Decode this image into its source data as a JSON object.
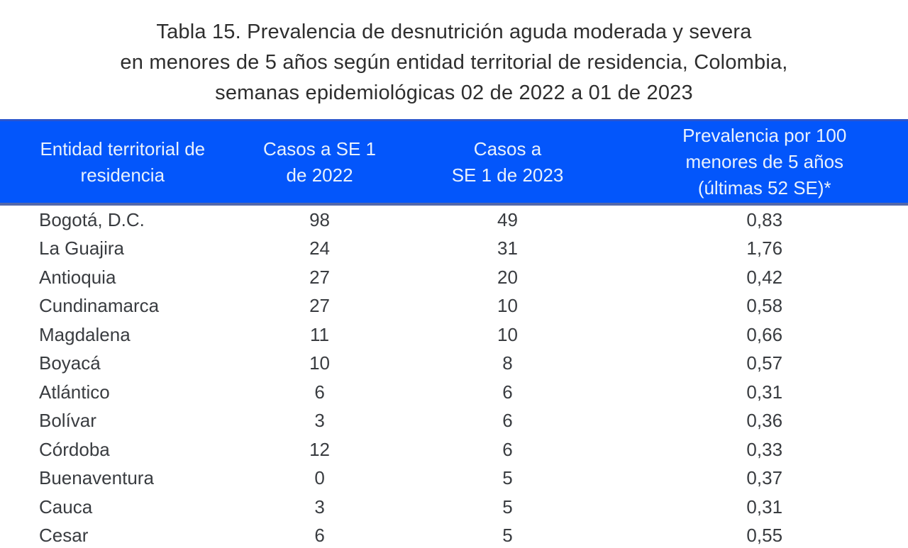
{
  "title": {
    "line1": "Tabla 15. Prevalencia de desnutrición aguda moderada y severa",
    "line2": "en menores de 5 años según entidad territorial de residencia, Colombia,",
    "line3": "semanas epidemiológicas 02 de 2022 a 01 de 2023"
  },
  "table": {
    "headers": {
      "col1": {
        "line1": "Entidad territorial de",
        "line2": "residencia"
      },
      "col2": {
        "line1": "Casos a SE 1",
        "line2": "de 2022"
      },
      "col3": {
        "line1": "Casos a",
        "line2": "SE 1 de 2023"
      },
      "col4": {
        "line1": "Prevalencia por 100",
        "line2": "menores de 5 años",
        "line3": "(últimas 52 SE)*"
      }
    },
    "rows": [
      {
        "entity": "Bogotá, D.C.",
        "cases_2022": "98",
        "cases_2023": "49",
        "prevalence": "0,83"
      },
      {
        "entity": "La Guajira",
        "cases_2022": "24",
        "cases_2023": "31",
        "prevalence": "1,76"
      },
      {
        "entity": "Antioquia",
        "cases_2022": "27",
        "cases_2023": "20",
        "prevalence": "0,42"
      },
      {
        "entity": "Cundinamarca",
        "cases_2022": "27",
        "cases_2023": "10",
        "prevalence": "0,58"
      },
      {
        "entity": "Magdalena",
        "cases_2022": "11",
        "cases_2023": "10",
        "prevalence": "0,66"
      },
      {
        "entity": "Boyacá",
        "cases_2022": "10",
        "cases_2023": "8",
        "prevalence": "0,57"
      },
      {
        "entity": "Atlántico",
        "cases_2022": "6",
        "cases_2023": "6",
        "prevalence": "0,31"
      },
      {
        "entity": "Bolívar",
        "cases_2022": "3",
        "cases_2023": "6",
        "prevalence": "0,36"
      },
      {
        "entity": "Córdoba",
        "cases_2022": "12",
        "cases_2023": "6",
        "prevalence": "0,33"
      },
      {
        "entity": "Buenaventura",
        "cases_2022": "0",
        "cases_2023": "5",
        "prevalence": "0,37"
      },
      {
        "entity": "Cauca",
        "cases_2022": "3",
        "cases_2023": "5",
        "prevalence": "0,31"
      },
      {
        "entity": "Cesar",
        "cases_2022": "6",
        "cases_2023": "5",
        "prevalence": "0,55"
      }
    ]
  },
  "colors": {
    "header_bg": "#0356FB",
    "header_text": "#E9F1FC",
    "header_border_top": "#2B55CD",
    "header_border_bottom": "#5468A9",
    "body_text": "#393C40",
    "title_text": "#2E2E2E",
    "page_bg": "#FFFFFF"
  },
  "chart_data": {
    "type": "table",
    "title": "Tabla 15. Prevalencia de desnutrición aguda moderada y severa en menores de 5 años según entidad territorial de residencia, Colombia, semanas epidemiológicas 02 de 2022 a 01 de 2023",
    "columns": [
      "Entidad territorial de residencia",
      "Casos a SE 1 de 2022",
      "Casos a SE 1 de 2023",
      "Prevalencia por 100 menores de 5 años (últimas 52 SE)*"
    ],
    "rows": [
      [
        "Bogotá, D.C.",
        98,
        49,
        0.83
      ],
      [
        "La Guajira",
        24,
        31,
        1.76
      ],
      [
        "Antioquia",
        27,
        20,
        0.42
      ],
      [
        "Cundinamarca",
        27,
        10,
        0.58
      ],
      [
        "Magdalena",
        11,
        10,
        0.66
      ],
      [
        "Boyacá",
        10,
        8,
        0.57
      ],
      [
        "Atlántico",
        6,
        6,
        0.31
      ],
      [
        "Bolívar",
        3,
        6,
        0.36
      ],
      [
        "Córdoba",
        12,
        6,
        0.33
      ],
      [
        "Buenaventura",
        0,
        5,
        0.37
      ],
      [
        "Cauca",
        3,
        5,
        0.31
      ],
      [
        "Cesar",
        6,
        5,
        0.55
      ]
    ]
  }
}
